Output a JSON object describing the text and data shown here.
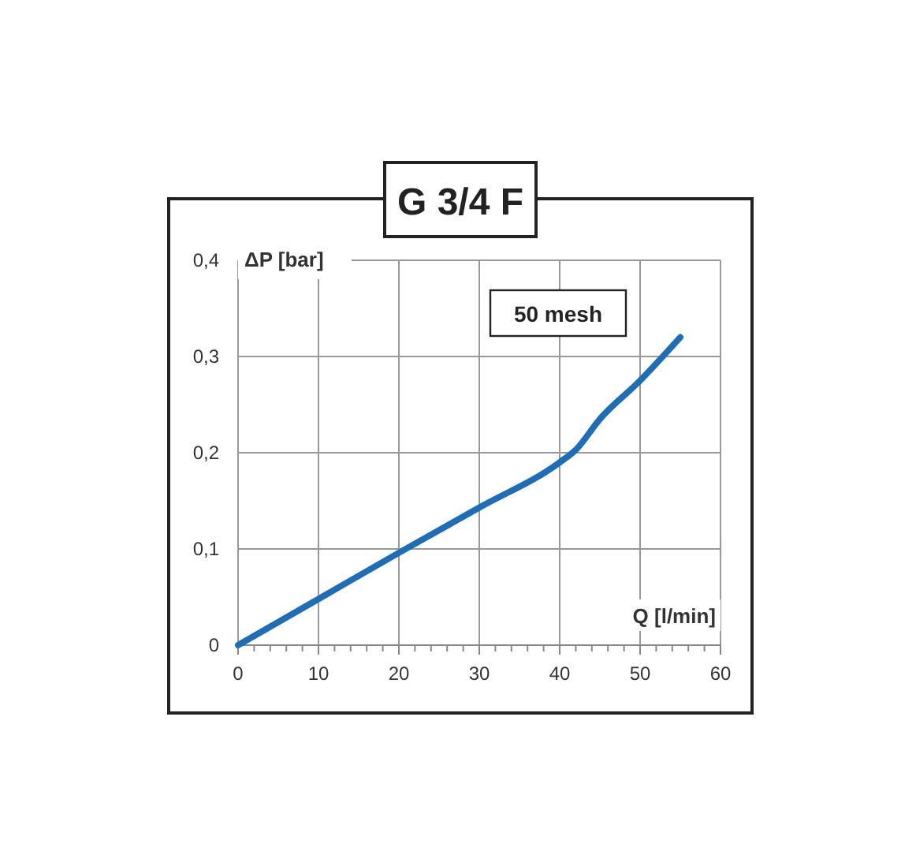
{
  "chart_data": {
    "type": "line",
    "title": "G 3/4 F",
    "xlabel": "Q  [l/min]",
    "ylabel": "ΔP  [bar]",
    "annotations": [
      "50 mesh"
    ],
    "x": [
      0,
      10,
      20,
      30,
      40,
      42,
      45,
      50,
      55
    ],
    "series": [
      {
        "color": "#1f6eb5",
        "values": [
          0,
          0.048,
          0.096,
          0.143,
          0.19,
          0.203,
          0.235,
          0.275,
          0.32
        ]
      }
    ],
    "xlim": [
      0,
      60
    ],
    "ylim": [
      0,
      0.4
    ],
    "xticks": [
      0,
      {
        "value": 2,
        "label": null
      },
      {
        "value": 4,
        "label": null
      },
      {
        "value": 6,
        "label": null
      },
      {
        "value": 8,
        "label": null
      },
      10,
      {
        "value": 12,
        "label": null
      },
      {
        "value": 14,
        "label": null
      },
      {
        "value": 16,
        "label": null
      },
      {
        "value": 18,
        "label": null
      },
      20,
      {
        "value": 22,
        "label": null
      },
      {
        "value": 24,
        "label": null
      },
      {
        "value": 26,
        "label": null
      },
      {
        "value": 28,
        "label": null
      },
      30,
      {
        "value": 32,
        "label": null
      },
      {
        "value": 34,
        "label": null
      },
      {
        "value": 36,
        "label": null
      },
      {
        "value": 38,
        "label": null
      },
      40,
      {
        "value": 42,
        "label": null
      },
      {
        "value": 44,
        "label": null
      },
      {
        "value": 46,
        "label": null
      },
      {
        "value": 48,
        "label": null
      },
      50,
      {
        "value": 52,
        "label": null
      },
      {
        "value": 54,
        "label": null
      },
      {
        "value": 56,
        "label": null
      },
      {
        "value": 58,
        "label": null
      },
      60
    ],
    "yticks": [
      {
        "value": 0,
        "label": "0"
      },
      {
        "value": 0.1,
        "label": "0,1"
      },
      {
        "value": 0.2,
        "label": "0,2"
      },
      {
        "value": 0.3,
        "label": "0,3"
      },
      {
        "value": 0.4,
        "label": "0,4"
      }
    ],
    "grid": true,
    "marker": "none",
    "line_style": "solid"
  }
}
